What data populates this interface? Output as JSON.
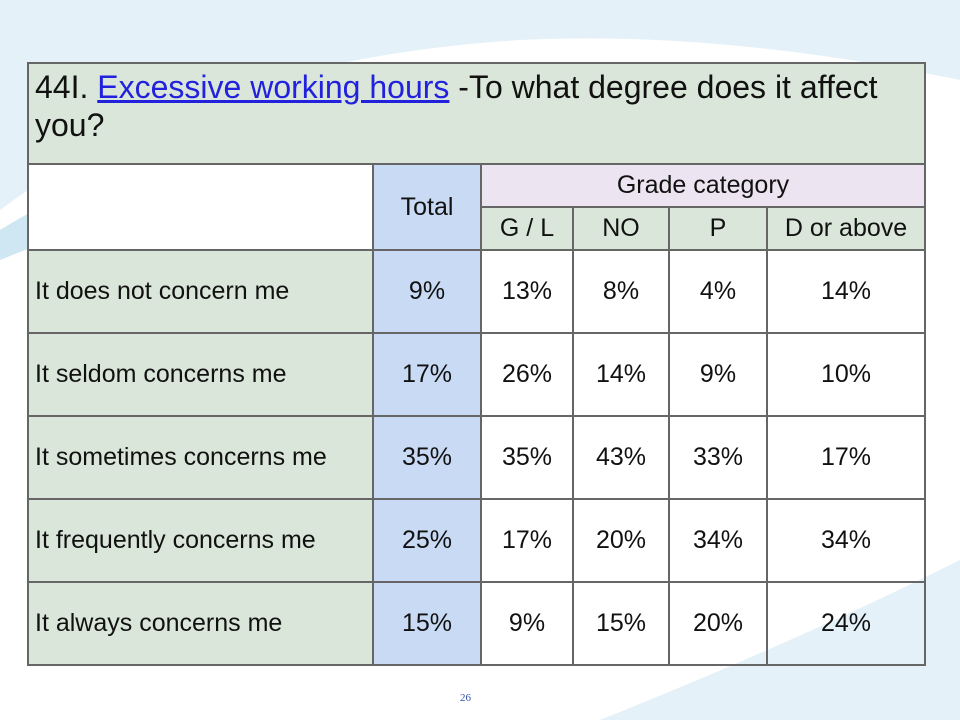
{
  "title": {
    "number": "44I.",
    "topic": "Excessive working hours",
    "question": "-To what degree does it affect you?"
  },
  "table": {
    "total_header": "Total",
    "group_header": "Grade category",
    "columns": [
      "G / L",
      "NO",
      "P",
      "D or above"
    ],
    "rows": [
      {
        "label": "It does not concern me",
        "total": "9%",
        "values": [
          "13%",
          "8%",
          "4%",
          "14%"
        ]
      },
      {
        "label": "It seldom concerns me",
        "total": "17%",
        "values": [
          "26%",
          "14%",
          "9%",
          "10%"
        ]
      },
      {
        "label": "It sometimes concerns me",
        "total": "35%",
        "values": [
          "35%",
          "43%",
          "33%",
          "17%"
        ]
      },
      {
        "label": "It frequently concerns me",
        "total": "25%",
        "values": [
          "17%",
          "20%",
          "34%",
          "34%"
        ]
      },
      {
        "label": "It always concerns me",
        "total": "15%",
        "values": [
          "9%",
          "15%",
          "20%",
          "24%"
        ]
      }
    ]
  },
  "page_number": "26"
}
